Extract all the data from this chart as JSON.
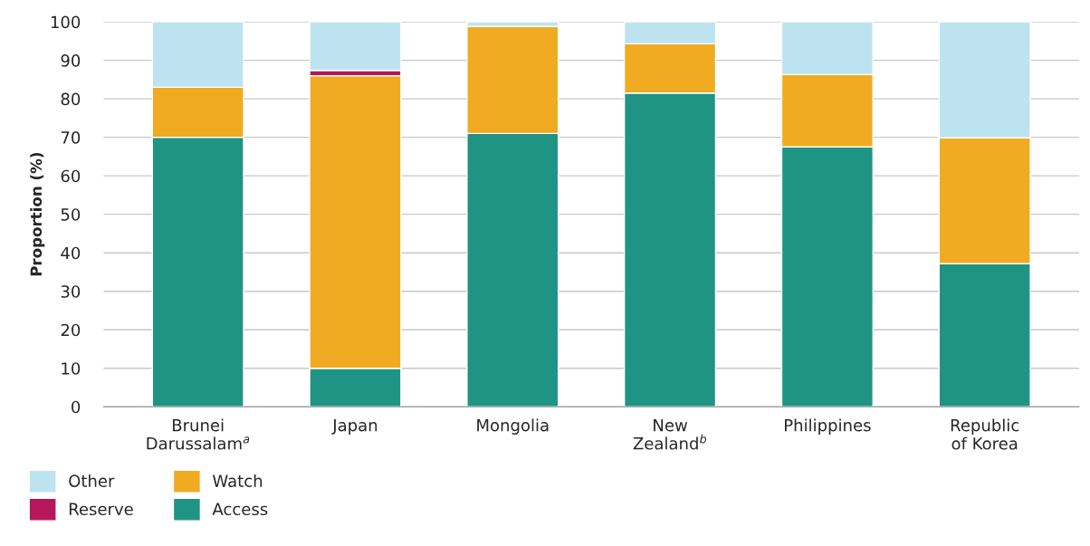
{
  "chart_data": {
    "type": "bar",
    "stacked": true,
    "ylabel": "Proportion (%)",
    "categories": [
      "Brunei\nDarussalam$^{a}$",
      "Japan",
      "Mongolia",
      "New\nZealand$^{b}$",
      "Philippines",
      "Republic\nof Korea"
    ],
    "series": [
      {
        "name": "Access",
        "color": "#1f9484",
        "values": [
          70,
          10,
          71,
          81.5,
          67.5,
          37.2
        ]
      },
      {
        "name": "Watch",
        "color": "#f0ab22",
        "values": [
          13,
          76,
          27.8,
          12.8,
          18.8,
          32.7
        ]
      },
      {
        "name": "Reserve",
        "color": "#b5175a",
        "values": [
          0,
          1.4,
          0,
          0,
          0,
          0
        ]
      },
      {
        "name": "Other",
        "color": "#bde3f1",
        "values": [
          17,
          12.6,
          1.2,
          5.7,
          13.7,
          30.1
        ]
      }
    ],
    "ylim": [
      0,
      100
    ],
    "yticks": [
      0,
      10,
      20,
      30,
      40,
      50,
      60,
      70,
      80,
      90,
      100
    ],
    "grid": "y",
    "legend": "bottom left"
  }
}
